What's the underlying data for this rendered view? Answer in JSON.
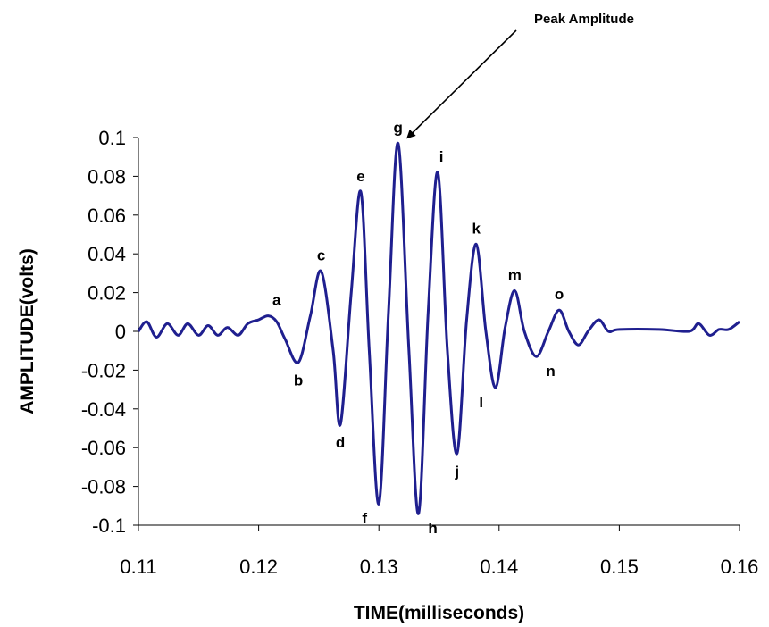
{
  "chart_data": {
    "type": "line",
    "title": "",
    "xlabel": "TIME(milliseconds)",
    "ylabel": "AMPLITUDE(volts)",
    "xlim": [
      0.11,
      0.16
    ],
    "ylim": [
      -0.1,
      0.1
    ],
    "x_ticks": [
      "0.11",
      "0.12",
      "0.13",
      "0.14",
      "0.15",
      "0.16"
    ],
    "y_ticks": [
      "0.1",
      "0.08",
      "0.06",
      "0.04",
      "0.02",
      "0",
      "-0.02",
      "-0.04",
      "-0.06",
      "-0.08",
      "-0.1"
    ],
    "grid": false,
    "line_color": "#1F1F8F",
    "series": [
      {
        "x": [
          0.11,
          0.1107,
          0.1115,
          0.1124,
          0.1133,
          0.1141,
          0.115,
          0.1158,
          0.1166,
          0.1174,
          0.1183,
          0.1191,
          0.12,
          0.1208,
          0.1215,
          0.1222,
          0.1233,
          0.1243,
          0.1252,
          0.1262,
          0.1268,
          0.1277,
          0.1285,
          0.1292,
          0.13,
          0.1308,
          0.1316,
          0.1325,
          0.1333,
          0.1341,
          0.1349,
          0.1357,
          0.1365,
          0.1373,
          0.1381,
          0.1389,
          0.1397,
          0.1405,
          0.1413,
          0.1421,
          0.1431,
          0.1441,
          0.145,
          0.1458,
          0.1466,
          0.1474,
          0.1483,
          0.1491,
          0.15,
          0.1533,
          0.1558,
          0.1566,
          0.1575,
          0.1583,
          0.1591,
          0.16
        ],
        "y": [
          0.0,
          0.005,
          -0.003,
          0.004,
          -0.002,
          0.004,
          -0.002,
          0.003,
          -0.002,
          0.002,
          -0.002,
          0.004,
          0.006,
          0.008,
          0.005,
          -0.004,
          -0.016,
          0.008,
          0.031,
          -0.01,
          -0.048,
          0.02,
          0.072,
          -0.01,
          -0.089,
          0.01,
          0.097,
          -0.01,
          -0.094,
          0.01,
          0.082,
          -0.01,
          -0.063,
          0.006,
          0.045,
          0.0,
          -0.029,
          0.002,
          0.021,
          0.0,
          -0.013,
          0.0,
          0.011,
          0.0,
          -0.007,
          0.0,
          0.006,
          0.0,
          0.001,
          0.001,
          0.0,
          0.004,
          -0.002,
          0.001,
          0.001,
          0.005
        ]
      }
    ],
    "point_labels": [
      {
        "label": "a",
        "x": 0.1215,
        "y": 0.008,
        "pos": "above"
      },
      {
        "label": "b",
        "x": 0.1233,
        "y": -0.016,
        "pos": "below"
      },
      {
        "label": "c",
        "x": 0.1252,
        "y": 0.031,
        "pos": "above"
      },
      {
        "label": "d",
        "x": 0.1268,
        "y": -0.048,
        "pos": "below"
      },
      {
        "label": "e",
        "x": 0.1285,
        "y": 0.072,
        "pos": "above"
      },
      {
        "label": "f",
        "x": 0.13,
        "y": -0.089,
        "pos": "below-left"
      },
      {
        "label": "g",
        "x": 0.1316,
        "y": 0.097,
        "pos": "above"
      },
      {
        "label": "h",
        "x": 0.1333,
        "y": -0.094,
        "pos": "below-right"
      },
      {
        "label": "i",
        "x": 0.1349,
        "y": 0.082,
        "pos": "above-right"
      },
      {
        "label": "j",
        "x": 0.1365,
        "y": -0.063,
        "pos": "below"
      },
      {
        "label": "k",
        "x": 0.1381,
        "y": 0.045,
        "pos": "above"
      },
      {
        "label": "l",
        "x": 0.1397,
        "y": -0.029,
        "pos": "below-left"
      },
      {
        "label": "m",
        "x": 0.1413,
        "y": 0.021,
        "pos": "above"
      },
      {
        "label": "n",
        "x": 0.1431,
        "y": -0.013,
        "pos": "below-right"
      },
      {
        "label": "o",
        "x": 0.145,
        "y": 0.011,
        "pos": "above"
      }
    ],
    "annotations": [
      {
        "text": "Peak Amplitude",
        "arrow_to": {
          "x": 0.1324,
          "y": 0.1
        }
      }
    ]
  }
}
